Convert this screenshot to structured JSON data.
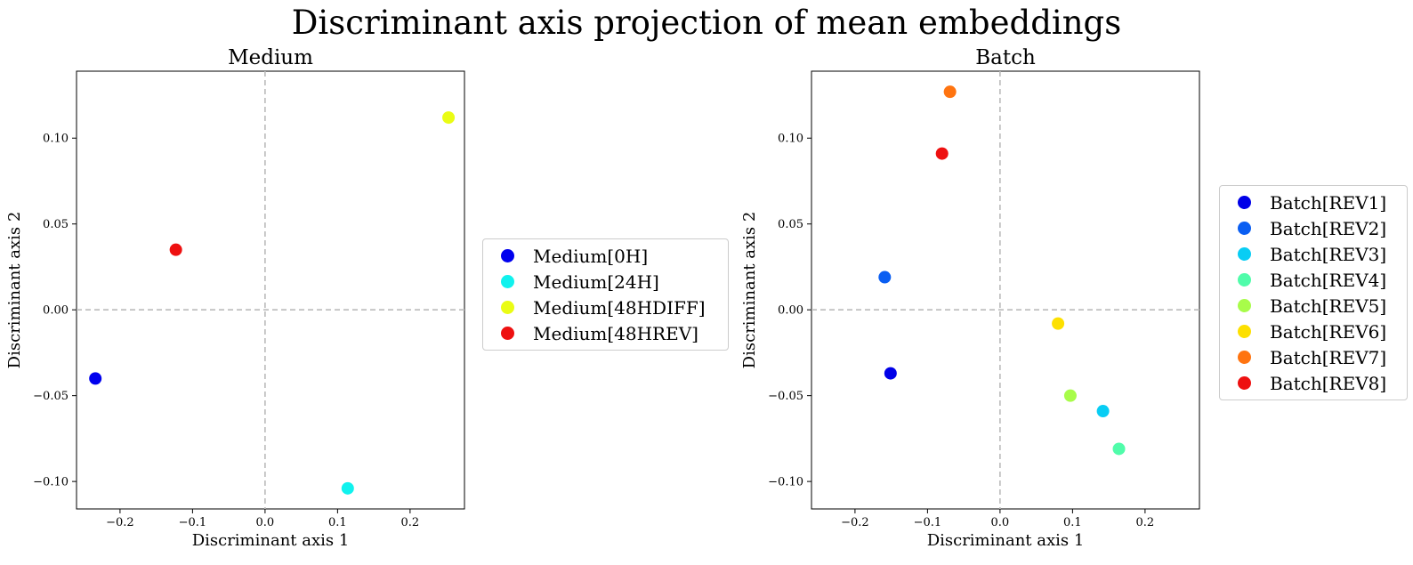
{
  "suptitle": "Discriminant axis projection of mean embeddings",
  "chart_data": [
    {
      "type": "scatter",
      "title": "Medium",
      "xlabel": "Discriminant axis 1",
      "ylabel": "Discriminant axis 2",
      "xlim": [
        -0.26,
        0.275
      ],
      "ylim": [
        -0.116,
        0.139
      ],
      "xticks": [
        -0.2,
        -0.1,
        0.0,
        0.1,
        0.2
      ],
      "xtick_labels": [
        "−0.2",
        "−0.1",
        "0.0",
        "0.1",
        "0.2"
      ],
      "yticks": [
        -0.1,
        -0.05,
        0.0,
        0.05,
        0.1
      ],
      "ytick_labels": [
        "−0.10",
        "−0.05",
        "0.00",
        "0.05",
        "0.10"
      ],
      "reference_lines": {
        "x": 0,
        "y": 0,
        "style": "dashed",
        "color": "#bbbbbb"
      },
      "grid": false,
      "legend_position": "outside-right",
      "series": [
        {
          "name": "Medium[0H]",
          "color": "#0000ee",
          "x": -0.234,
          "y": -0.04
        },
        {
          "name": "Medium[24H]",
          "color": "#10f2ee",
          "x": 0.114,
          "y": -0.104
        },
        {
          "name": "Medium[48HDIFF]",
          "color": "#eafc14",
          "x": 0.253,
          "y": 0.112
        },
        {
          "name": "Medium[48HREV]",
          "color": "#ee1010",
          "x": -0.123,
          "y": 0.035
        }
      ]
    },
    {
      "type": "scatter",
      "title": "Batch",
      "xlabel": "Discriminant axis 1",
      "ylabel": "Discriminant axis 2",
      "xlim": [
        -0.26,
        0.275
      ],
      "ylim": [
        -0.116,
        0.139
      ],
      "xticks": [
        -0.2,
        -0.1,
        0.0,
        0.1,
        0.2
      ],
      "xtick_labels": [
        "−0.2",
        "−0.1",
        "0.0",
        "0.1",
        "0.2"
      ],
      "yticks": [
        -0.1,
        -0.05,
        0.0,
        0.05,
        0.1
      ],
      "ytick_labels": [
        "−0.10",
        "−0.05",
        "0.00",
        "0.05",
        "0.10"
      ],
      "reference_lines": {
        "x": 0,
        "y": 0,
        "style": "dashed",
        "color": "#bbbbbb"
      },
      "grid": false,
      "legend_position": "outside-right",
      "series": [
        {
          "name": "Batch[REV1]",
          "color": "#0000e8",
          "x": -0.151,
          "y": -0.037
        },
        {
          "name": "Batch[REV2]",
          "color": "#0a5ef2",
          "x": -0.159,
          "y": 0.019
        },
        {
          "name": "Batch[REV3]",
          "color": "#08cdf4",
          "x": 0.142,
          "y": -0.059
        },
        {
          "name": "Batch[REV4]",
          "color": "#50fcaa",
          "x": 0.164,
          "y": -0.081
        },
        {
          "name": "Batch[REV5]",
          "color": "#a8fc4a",
          "x": 0.097,
          "y": -0.05
        },
        {
          "name": "Batch[REV6]",
          "color": "#fde000",
          "x": 0.08,
          "y": -0.008
        },
        {
          "name": "Batch[REV7]",
          "color": "#ff7410",
          "x": -0.069,
          "y": 0.127
        },
        {
          "name": "Batch[REV8]",
          "color": "#ee1010",
          "x": -0.08,
          "y": 0.091
        }
      ]
    }
  ]
}
